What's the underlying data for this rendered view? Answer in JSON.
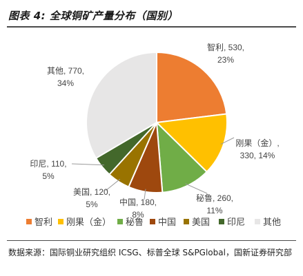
{
  "figure": {
    "title": "图表 4: 全球铜矿产量分布（国别）",
    "source_text": "数据来源：国际铜业研究组织 ICSG、标普全球 S&PGlobal，国新证券研究部"
  },
  "chart_data": {
    "type": "pie",
    "title": "",
    "labels": [
      "智利",
      "刚果（金）",
      "秘鲁",
      "中国",
      "美国",
      "印尼",
      "其他"
    ],
    "values": [
      530,
      330,
      260,
      180,
      120,
      110,
      770
    ],
    "percents": [
      "23%",
      "14%",
      "11%",
      "8%",
      "5%",
      "5%",
      "34%"
    ],
    "colors": [
      "#ED7D31",
      "#FFC000",
      "#70AD47",
      "#9E480E",
      "#997300",
      "#43682B",
      "#E7E6E6"
    ],
    "data_labels": [
      [
        "智利, 530,",
        "23%"
      ],
      [
        "刚果（金）,",
        "330, 14%"
      ],
      [
        "秘鲁, 260,",
        "11%"
      ],
      [
        "中国, 180,",
        "8%"
      ],
      [
        "美国, 120,",
        "5%"
      ],
      [
        "印尼, 110,",
        "5%"
      ],
      [
        "其他, 770,",
        "34%"
      ]
    ],
    "legend_position": "bottom",
    "start_angle": "12 o'clock, clockwise"
  }
}
